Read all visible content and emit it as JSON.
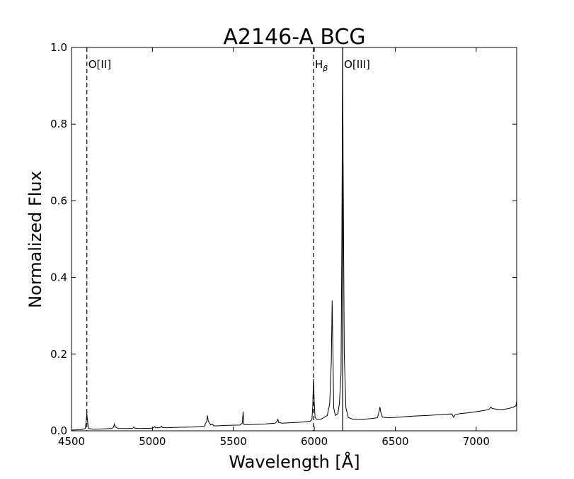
{
  "chart_data": {
    "type": "line",
    "title": "A2146-A BCG",
    "xlabel": "Wavelength [Å]",
    "ylabel": "Normalized Flux",
    "xlim": [
      4500,
      7250
    ],
    "ylim": [
      0.0,
      1.0
    ],
    "x_ticks": [
      4500,
      5000,
      5500,
      6000,
      6500,
      7000
    ],
    "y_ticks": [
      0.0,
      0.2,
      0.4,
      0.6,
      0.8,
      1.0
    ],
    "x_tick_labels": [
      "4500",
      "5000",
      "5500",
      "6000",
      "6500",
      "7000"
    ],
    "y_tick_labels": [
      "0.0",
      "0.2",
      "0.4",
      "0.6",
      "0.8",
      "1.0"
    ],
    "grid": false,
    "legend": "none",
    "line_color": "#000000",
    "lines": [
      {
        "x": 4595,
        "label": "O[II]",
        "style": "dashed"
      },
      {
        "x": 5995,
        "label": "H",
        "sub": "β",
        "style": "dashed"
      },
      {
        "x": 6175,
        "label": "O[III]",
        "style": "solid"
      }
    ],
    "series": [
      {
        "x": [
          4500,
          4560,
          4585,
          4592,
          4595,
          4598,
          4605,
          4640,
          4700,
          4750,
          4760,
          4765,
          4770,
          4790,
          4850,
          4880,
          4885,
          4890,
          4920,
          5000,
          5010,
          5015,
          5020,
          5040,
          5050,
          5055,
          5060,
          5080,
          5150,
          5250,
          5320,
          5335,
          5340,
          5345,
          5360,
          5370,
          5380,
          5400,
          5450,
          5540,
          5555,
          5560,
          5565,
          5600,
          5700,
          5760,
          5770,
          5775,
          5780,
          5800,
          5850,
          5900,
          5950,
          5975,
          5985,
          5990,
          5995,
          6000,
          6005,
          6015,
          6040,
          6080,
          6095,
          6105,
          6110,
          6115,
          6120,
          6130,
          6145,
          6155,
          6165,
          6170,
          6175,
          6178,
          6185,
          6195,
          6210,
          6240,
          6300,
          6350,
          6390,
          6400,
          6405,
          6410,
          6420,
          6450,
          6500,
          6600,
          6700,
          6800,
          6850,
          6860,
          6870,
          6900,
          6950,
          7000,
          7050,
          7080,
          7090,
          7100,
          7150,
          7200,
          7230,
          7245,
          7250
        ],
        "y": [
          0.002,
          0.003,
          0.006,
          0.03,
          0.048,
          0.03,
          0.006,
          0.004,
          0.005,
          0.006,
          0.01,
          0.018,
          0.01,
          0.006,
          0.006,
          0.007,
          0.01,
          0.007,
          0.006,
          0.007,
          0.009,
          0.011,
          0.008,
          0.008,
          0.009,
          0.012,
          0.009,
          0.008,
          0.009,
          0.01,
          0.012,
          0.025,
          0.04,
          0.025,
          0.015,
          0.018,
          0.013,
          0.013,
          0.014,
          0.015,
          0.02,
          0.05,
          0.016,
          0.016,
          0.018,
          0.02,
          0.025,
          0.03,
          0.022,
          0.02,
          0.021,
          0.022,
          0.024,
          0.025,
          0.03,
          0.06,
          0.135,
          0.07,
          0.035,
          0.03,
          0.03,
          0.04,
          0.07,
          0.18,
          0.34,
          0.2,
          0.06,
          0.04,
          0.045,
          0.07,
          0.15,
          0.5,
          1.0,
          0.7,
          0.2,
          0.06,
          0.035,
          0.03,
          0.03,
          0.032,
          0.034,
          0.05,
          0.062,
          0.05,
          0.036,
          0.034,
          0.035,
          0.038,
          0.04,
          0.043,
          0.044,
          0.035,
          0.042,
          0.045,
          0.047,
          0.05,
          0.053,
          0.056,
          0.062,
          0.058,
          0.055,
          0.058,
          0.062,
          0.065,
          0.078
        ]
      }
    ]
  }
}
